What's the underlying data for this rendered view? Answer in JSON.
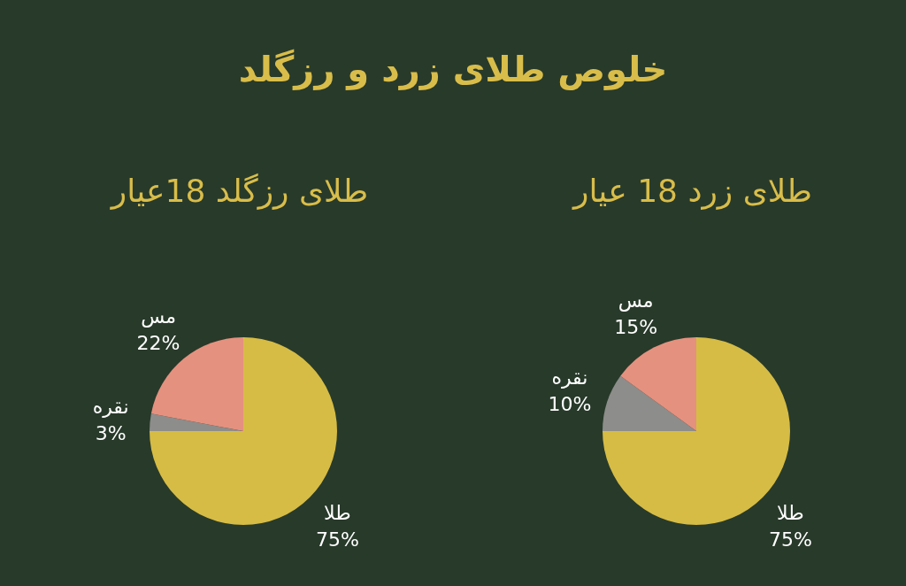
{
  "chart_data": [
    {
      "type": "other",
      "title": "خلوص طلای زرد و رزگلد"
    },
    {
      "type": "pie",
      "title": "طلای رزگلد 18عیار",
      "categories": [
        "طلا",
        "نقره",
        "مس"
      ],
      "values": [
        75,
        3,
        22
      ],
      "colors": [
        "#d6bc45",
        "#8d8d8b",
        "#e5917f"
      ],
      "value_labels": [
        "75%",
        "3%",
        "22%"
      ]
    },
    {
      "type": "pie",
      "title": "طلای زرد 18 عیار",
      "categories": [
        "طلا",
        "نقره",
        "مس"
      ],
      "values": [
        75,
        10,
        15
      ],
      "colors": [
        "#d6bc45",
        "#8d8d8b",
        "#e5917f"
      ],
      "value_labels": [
        "75%",
        "10%",
        "15%"
      ]
    }
  ]
}
